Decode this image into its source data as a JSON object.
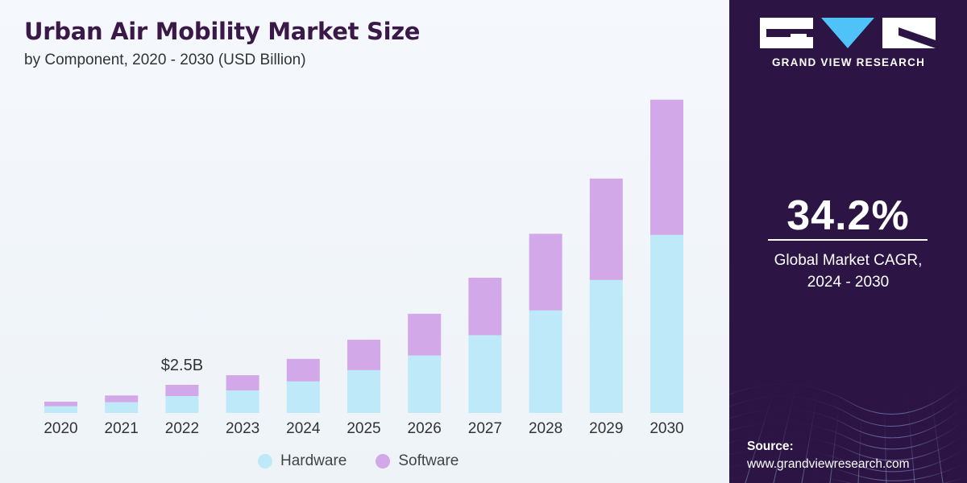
{
  "title": "Urban Air Mobility Market Size",
  "subtitle": "by Component, 2020 - 2030 (USD Billion)",
  "chart_data": {
    "type": "bar",
    "stacked": true,
    "categories": [
      "2020",
      "2021",
      "2022",
      "2023",
      "2024",
      "2025",
      "2026",
      "2027",
      "2028",
      "2029",
      "2030"
    ],
    "series": [
      {
        "name": "Hardware",
        "color": "#bde9f8",
        "values": [
          0.6,
          0.95,
          1.5,
          2.0,
          2.8,
          3.8,
          5.1,
          6.9,
          9.1,
          11.8,
          15.8
        ]
      },
      {
        "name": "Software",
        "color": "#d2a8e8",
        "values": [
          0.4,
          0.6,
          1.0,
          1.35,
          2.0,
          2.7,
          3.7,
          5.1,
          6.8,
          9.0,
          12.0
        ]
      }
    ],
    "annotations": [
      {
        "category": "2022",
        "text": "$2.5B"
      }
    ],
    "ylim": [
      0,
      28.5
    ],
    "legend_position": "bottom"
  },
  "logo": {
    "text": "GRAND VIEW RESEARCH"
  },
  "cagr": {
    "value": "34.2%",
    "label_line1": "Global Market CAGR,",
    "label_line2": "2024 - 2030"
  },
  "source": {
    "label": "Source:",
    "url": "www.grandviewresearch.com"
  },
  "colors": {
    "panel": "#2c1545",
    "title": "#3a1848"
  }
}
